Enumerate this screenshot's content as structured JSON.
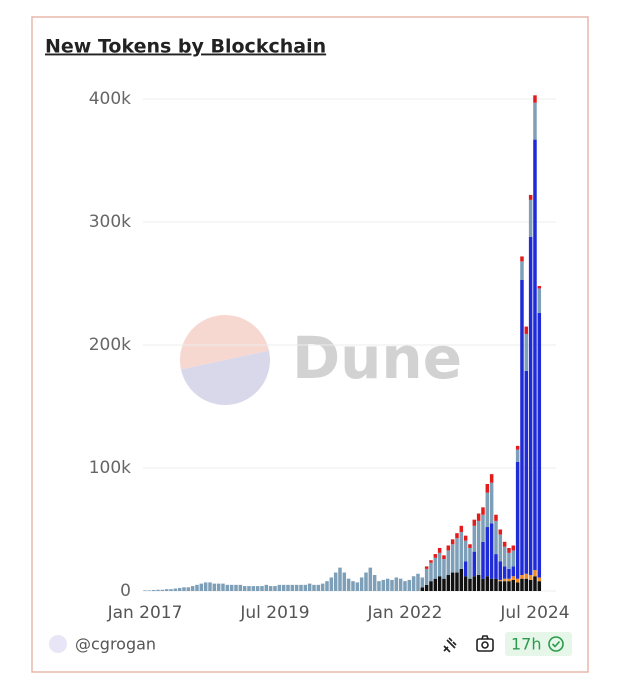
{
  "chart_data": {
    "type": "stacked_bar",
    "title": "New Tokens by Blockchain",
    "categories": [
      "Jan 2017",
      null,
      null,
      null,
      null,
      null,
      null,
      null,
      null,
      null,
      null,
      null,
      null,
      null,
      null,
      null,
      null,
      null,
      null,
      null,
      null,
      null,
      null,
      null,
      null,
      null,
      null,
      null,
      null,
      null,
      "Jul 2019",
      null,
      null,
      null,
      null,
      null,
      null,
      null,
      null,
      null,
      null,
      null,
      null,
      null,
      null,
      null,
      null,
      null,
      null,
      null,
      null,
      null,
      null,
      null,
      null,
      null,
      null,
      null,
      null,
      null,
      "Jan 2022",
      null,
      null,
      null,
      null,
      null,
      null,
      null,
      null,
      null,
      null,
      null,
      null,
      null,
      null,
      null,
      null,
      null,
      null,
      null,
      null,
      null,
      null,
      null,
      null,
      null,
      null,
      null,
      null,
      null,
      "Jul 2024",
      null
    ],
    "series": [
      {
        "color": "#111111",
        "values": [
          0,
          0,
          0,
          0,
          0,
          0,
          0,
          0,
          0,
          0,
          0,
          0,
          0,
          0,
          0,
          0,
          0,
          0,
          0,
          0,
          0,
          0,
          0,
          0,
          0,
          0,
          0,
          0,
          0,
          0,
          0,
          0,
          0,
          0,
          0,
          0,
          0,
          0,
          0,
          0,
          0,
          0,
          0,
          0,
          0,
          0,
          0,
          0,
          0,
          0,
          0,
          0,
          0,
          0,
          0,
          0,
          0,
          0,
          0,
          0,
          0,
          0,
          0,
          0,
          3000,
          5000,
          8000,
          10000,
          12000,
          10000,
          13000,
          15000,
          15000,
          18000,
          12000,
          10000,
          12000,
          13000,
          10000,
          12000,
          10000,
          10000,
          8000,
          8000,
          8000,
          9000,
          7000,
          10000,
          10000,
          9000,
          12000,
          8000
        ]
      },
      {
        "color": "#f08a24",
        "values": [
          0,
          0,
          0,
          0,
          0,
          0,
          0,
          0,
          0,
          0,
          0,
          0,
          0,
          0,
          0,
          0,
          0,
          0,
          0,
          0,
          0,
          0,
          0,
          0,
          0,
          0,
          0,
          0,
          0,
          0,
          0,
          0,
          0,
          0,
          0,
          0,
          0,
          0,
          0,
          0,
          0,
          0,
          0,
          0,
          0,
          0,
          0,
          0,
          0,
          0,
          0,
          0,
          0,
          0,
          0,
          0,
          0,
          0,
          0,
          0,
          0,
          0,
          0,
          0,
          0,
          0,
          0,
          0,
          0,
          0,
          0,
          0,
          0,
          0,
          0,
          0,
          0,
          0,
          0,
          0,
          0,
          0,
          1000,
          2000,
          2000,
          3000,
          3000,
          3000,
          4000,
          4000,
          5000,
          3000
        ]
      },
      {
        "color": "#1f2bd6",
        "values": [
          0,
          0,
          0,
          0,
          0,
          0,
          0,
          0,
          0,
          0,
          0,
          0,
          0,
          0,
          0,
          0,
          0,
          0,
          0,
          0,
          0,
          0,
          0,
          0,
          0,
          0,
          0,
          0,
          0,
          0,
          0,
          0,
          0,
          0,
          0,
          0,
          0,
          0,
          0,
          0,
          0,
          0,
          0,
          0,
          0,
          0,
          0,
          0,
          0,
          0,
          0,
          0,
          0,
          0,
          0,
          0,
          0,
          0,
          0,
          0,
          0,
          0,
          0,
          0,
          0,
          0,
          0,
          0,
          0,
          0,
          0,
          0,
          0,
          0,
          12000,
          0,
          20000,
          0,
          30000,
          40000,
          45000,
          20000,
          15000,
          10000,
          8000,
          8000,
          95000,
          240000,
          165000,
          275000,
          350000,
          215000
        ]
      },
      {
        "color": "#7e9fb8",
        "values": [
          500,
          500,
          800,
          1000,
          1000,
          1500,
          1500,
          2000,
          2500,
          3000,
          3000,
          4000,
          5000,
          6000,
          7000,
          7000,
          6000,
          6000,
          6000,
          5000,
          5000,
          5000,
          5000,
          4000,
          4000,
          4000,
          4000,
          4000,
          5000,
          4000,
          4000,
          5000,
          5000,
          5000,
          5000,
          5000,
          5000,
          5000,
          6000,
          5000,
          5000,
          6000,
          8000,
          11000,
          15000,
          19000,
          15000,
          10000,
          8000,
          7000,
          11000,
          15000,
          19000,
          13000,
          8000,
          9000,
          10000,
          9000,
          11000,
          10000,
          8000,
          9000,
          12000,
          14000,
          8000,
          13000,
          15000,
          17000,
          19000,
          16000,
          20000,
          23000,
          28000,
          30000,
          17000,
          25000,
          21000,
          44000,
          22000,
          28000,
          33000,
          27000,
          22000,
          16000,
          13000,
          13000,
          10000,
          15000,
          30000,
          30000,
          30000,
          20000
        ]
      },
      {
        "color": "#e31b1b",
        "values": [
          0,
          0,
          0,
          0,
          0,
          0,
          0,
          0,
          0,
          0,
          0,
          0,
          0,
          0,
          0,
          0,
          0,
          0,
          0,
          0,
          0,
          0,
          0,
          0,
          0,
          0,
          0,
          0,
          0,
          0,
          0,
          0,
          0,
          0,
          0,
          0,
          0,
          0,
          0,
          0,
          0,
          0,
          0,
          0,
          0,
          0,
          0,
          0,
          0,
          0,
          0,
          0,
          0,
          0,
          0,
          0,
          0,
          0,
          0,
          0,
          0,
          0,
          0,
          0,
          0,
          2000,
          2000,
          3000,
          4000,
          3000,
          4000,
          4000,
          4000,
          5000,
          4000,
          3000,
          5000,
          6000,
          6000,
          7000,
          7000,
          5000,
          4000,
          4000,
          4000,
          4000,
          3000,
          4000,
          6000,
          4000,
          6000,
          2000
        ]
      }
    ],
    "ylim": [
      0,
      400000
    ],
    "yticks": [
      0,
      {
        "value": 100000,
        "label": "100k"
      },
      {
        "value": 200000,
        "label": "200k"
      },
      {
        "value": 300000,
        "label": "300k"
      },
      {
        "value": 400000,
        "label": "400k"
      }
    ],
    "grid": true
  },
  "watermark": "Dune",
  "footer": {
    "author": "@cgrogan",
    "age": "17h"
  }
}
